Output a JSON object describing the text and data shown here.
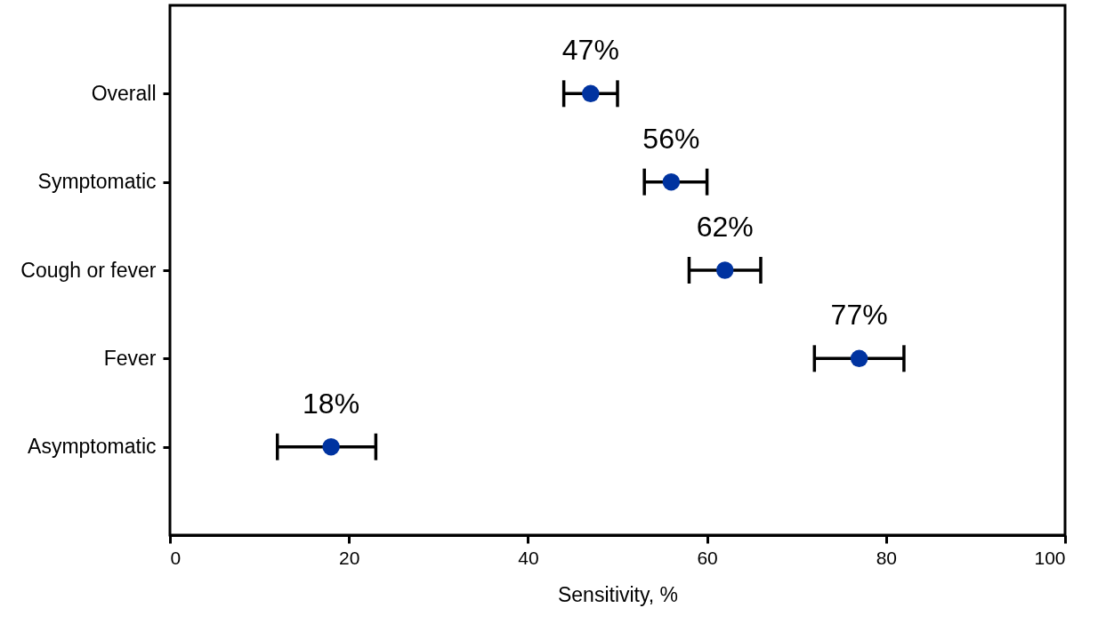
{
  "chart_data": {
    "type": "scatter",
    "orientation": "horizontal",
    "xlabel": "Sensitivity, %",
    "categories": [
      "Overall",
      "Symptomatic",
      "Cough or fever",
      "Fever",
      "Asymptomatic"
    ],
    "values": [
      47,
      56,
      62,
      77,
      18
    ],
    "errors": [
      [
        44,
        50
      ],
      [
        53,
        60
      ],
      [
        58,
        66
      ],
      [
        72,
        82
      ],
      [
        12,
        23
      ]
    ],
    "value_labels": [
      "47%",
      "56%",
      "62%",
      "77%",
      "18%"
    ],
    "color": "#0033a0",
    "marker": "circle",
    "xlim": [
      0,
      100
    ],
    "xticks": [
      0,
      20,
      40,
      60,
      80,
      100
    ],
    "grid": false
  }
}
